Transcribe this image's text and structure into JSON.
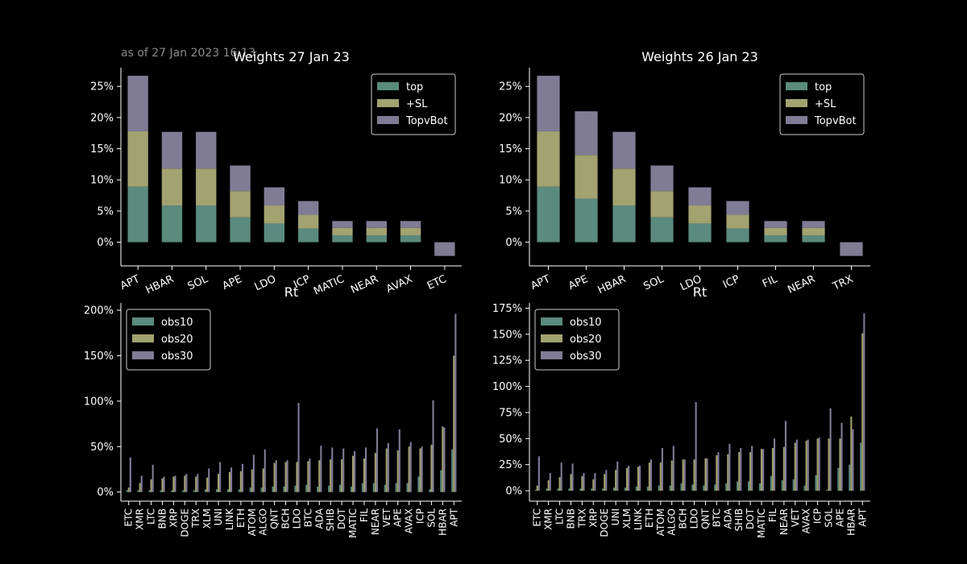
{
  "timestamp": "as of 27 Jan 2023 16:13",
  "colors": {
    "background": "#000000",
    "foreground": "#ffffff",
    "series1": "#5b8a7e",
    "series2": "#a3a271",
    "series3": "#817c96"
  },
  "chart_data": [
    {
      "type": "bar",
      "stacked": true,
      "title": "Weights 27 Jan 23",
      "xlabel": "",
      "ylabel": "",
      "categories": [
        "APT",
        "HBAR",
        "SOL",
        "APE",
        "LDO",
        "ICP",
        "MATIC",
        "NEAR",
        "AVAX",
        "ETC"
      ],
      "series": [
        {
          "name": "top",
          "values": [
            8.9,
            5.9,
            5.9,
            4.0,
            3.0,
            2.2,
            1.1,
            1.1,
            1.1,
            0
          ]
        },
        {
          "name": "+SL",
          "values": [
            8.9,
            5.9,
            5.9,
            4.2,
            2.9,
            2.2,
            1.2,
            1.2,
            1.2,
            0
          ]
        },
        {
          "name": "TopvBot",
          "values": [
            8.9,
            5.9,
            5.9,
            4.1,
            2.9,
            2.2,
            1.1,
            1.1,
            1.1,
            -2.2
          ]
        }
      ],
      "ylim": [
        -3.8,
        28
      ],
      "yticks": [
        0,
        5,
        10,
        15,
        20,
        25
      ],
      "ytick_labels": [
        "0%",
        "5%",
        "10%",
        "15%",
        "20%",
        "25%"
      ],
      "legend": "upper-right",
      "grid": false
    },
    {
      "type": "bar",
      "stacked": true,
      "title": "Weights 26 Jan 23",
      "xlabel": "",
      "ylabel": "",
      "categories": [
        "APT",
        "APE",
        "HBAR",
        "SOL",
        "LDO",
        "ICP",
        "FIL",
        "NEAR",
        "TRX"
      ],
      "series": [
        {
          "name": "top",
          "values": [
            8.9,
            7.0,
            5.9,
            4.0,
            3.0,
            2.2,
            1.1,
            1.1,
            0
          ]
        },
        {
          "name": "+SL",
          "values": [
            8.9,
            7.0,
            5.9,
            4.2,
            2.9,
            2.2,
            1.2,
            1.2,
            0
          ]
        },
        {
          "name": "TopvBot",
          "values": [
            8.9,
            7.0,
            5.9,
            4.1,
            2.9,
            2.2,
            1.1,
            1.1,
            -2.2
          ]
        }
      ],
      "ylim": [
        -3.8,
        28
      ],
      "yticks": [
        0,
        5,
        10,
        15,
        20,
        25
      ],
      "ytick_labels": [
        "0%",
        "5%",
        "10%",
        "15%",
        "20%",
        "25%"
      ],
      "legend": "upper-right",
      "grid": false
    },
    {
      "type": "bar",
      "grouped": true,
      "title": "Rt",
      "xlabel": "",
      "ylabel": "",
      "categories": [
        "ETC",
        "XMR",
        "LTC",
        "BNB",
        "XRP",
        "DOGE",
        "TRX",
        "XLM",
        "UNI",
        "LINK",
        "ETH",
        "ATOM",
        "ALGO",
        "QNT",
        "BCH",
        "LDO",
        "BTC",
        "ADA",
        "SHIB",
        "DOT",
        "MATIC",
        "FIL",
        "NEAR",
        "VET",
        "APE",
        "AVAX",
        "ICP",
        "SOL",
        "HBAR",
        "APT"
      ],
      "series": [
        {
          "name": "obs10",
          "values": [
            2,
            2,
            2,
            2,
            2,
            2,
            2,
            3,
            3,
            3,
            3,
            5,
            5,
            6,
            6,
            7,
            8,
            6,
            7,
            8,
            6,
            10,
            10,
            8,
            10,
            10,
            17,
            3,
            24,
            47
          ]
        },
        {
          "name": "obs20",
          "values": [
            5,
            10,
            14,
            15,
            17,
            18,
            17,
            16,
            20,
            22,
            23,
            25,
            26,
            32,
            33,
            33,
            34,
            35,
            36,
            36,
            40,
            37,
            43,
            48,
            46,
            50,
            48,
            52,
            72,
            150
          ]
        },
        {
          "name": "obs30",
          "values": [
            38,
            18,
            30,
            17,
            18,
            20,
            20,
            26,
            33,
            27,
            31,
            41,
            47,
            35,
            35,
            98,
            37,
            51,
            49,
            48,
            45,
            49,
            70,
            54,
            69,
            55,
            50,
            101,
            71,
            196
          ]
        }
      ],
      "ylim": [
        -10,
        208
      ],
      "yticks": [
        0,
        50,
        100,
        150,
        200
      ],
      "ytick_labels": [
        "0%",
        "50%",
        "100%",
        "150%",
        "200%"
      ],
      "legend": "upper-left",
      "grid": false
    },
    {
      "type": "bar",
      "grouped": true,
      "title": "Rt",
      "xlabel": "",
      "ylabel": "",
      "categories": [
        "ETC",
        "XMR",
        "LTC",
        "BNB",
        "TRX",
        "XRP",
        "DOGE",
        "UNI",
        "XLM",
        "LINK",
        "ETH",
        "ATOM",
        "ALGO",
        "BCH",
        "LDO",
        "QNT",
        "BTC",
        "ADA",
        "SHIB",
        "DOT",
        "MATIC",
        "FIL",
        "NEAR",
        "VET",
        "AVAX",
        "ICP",
        "SOL",
        "APE",
        "HBAR",
        "APT"
      ],
      "series": [
        {
          "name": "obs10",
          "values": [
            1,
            2,
            2,
            2,
            2,
            2,
            2,
            3,
            3,
            4,
            4,
            5,
            5,
            7,
            6,
            5,
            6,
            7,
            9,
            9,
            7,
            14,
            10,
            11,
            5,
            15,
            1,
            22,
            25,
            46
          ]
        },
        {
          "name": "obs20",
          "values": [
            5,
            10,
            13,
            16,
            14,
            11,
            16,
            20,
            22,
            23,
            27,
            27,
            29,
            30,
            30,
            31,
            34,
            35,
            37,
            37,
            40,
            41,
            42,
            46,
            48,
            50,
            50,
            50,
            71,
            151
          ]
        },
        {
          "name": "obs30",
          "values": [
            33,
            17,
            27,
            26,
            17,
            17,
            20,
            28,
            24,
            24,
            30,
            41,
            43,
            30,
            85,
            31,
            37,
            45,
            41,
            43,
            40,
            50,
            67,
            49,
            49,
            51,
            79,
            65,
            59,
            170
          ]
        }
      ],
      "ylim": [
        -10,
        180
      ],
      "yticks": [
        0,
        25,
        50,
        75,
        100,
        125,
        150,
        175
      ],
      "ytick_labels": [
        "0%",
        "25%",
        "50%",
        "75%",
        "100%",
        "125%",
        "150%",
        "175%"
      ],
      "legend": "upper-left",
      "grid": false
    }
  ]
}
